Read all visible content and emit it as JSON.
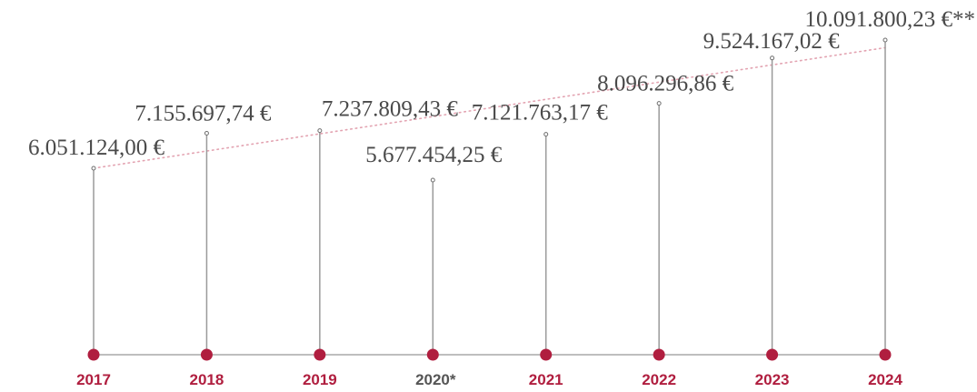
{
  "chart_data": {
    "type": "line",
    "categories": [
      "2017",
      "2018",
      "2019",
      "2020*",
      "2021",
      "2022",
      "2023",
      "2024"
    ],
    "values": [
      6051124.0,
      7155697.74,
      7237809.43,
      5677454.25,
      7121763.17,
      8096296.86,
      9524167.02,
      10091800.23
    ],
    "value_labels": [
      "6.051.124,00 €",
      "7.155.697,74 €",
      "7.237.809,43 €",
      "5.677.454,25 €",
      "7.121.763,17 €",
      "8.096.296,86 €",
      "9.524.167,02 €",
      "10.091.800,23 €**"
    ],
    "trendline": {
      "style": "dotted",
      "from_value": 6051124.0,
      "to_value": 9850000
    },
    "title": "",
    "xlabel": "",
    "ylabel": "",
    "ylim": [
      0,
      10091800.23
    ],
    "grid": false,
    "colors": {
      "accent": "#b01e3f",
      "stem": "#9a9a9a",
      "axis": "#a8a8a8",
      "label": "#4a4a4a",
      "year_muted": "#555555",
      "trend": "#e3a3b1"
    }
  }
}
